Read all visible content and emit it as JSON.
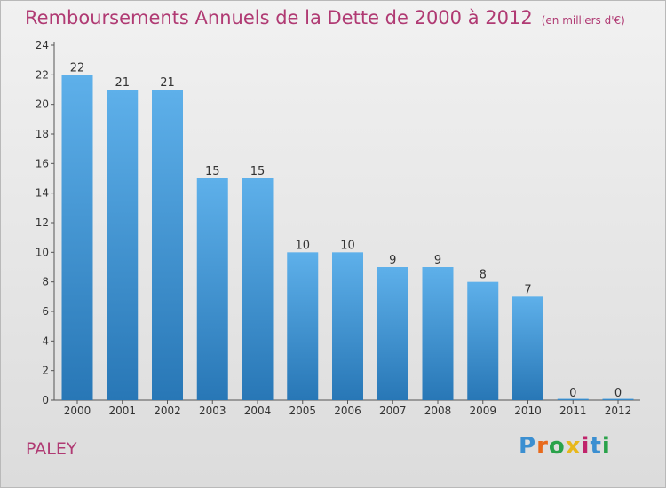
{
  "header": {
    "title": "Remboursements Annuels de la Dette de 2000 à 2012",
    "unit": "(en milliers d'€)"
  },
  "footer": {
    "commune": "PALEY",
    "logo": [
      "P",
      "r",
      "o",
      "x",
      "i",
      "t",
      "i"
    ]
  },
  "colors": {
    "bar_top": "#5eb0ea",
    "bar_bottom": "#2877b6",
    "title": "#b03a73"
  },
  "chart_data": {
    "type": "bar",
    "categories": [
      "2000",
      "2001",
      "2002",
      "2003",
      "2004",
      "2005",
      "2006",
      "2007",
      "2008",
      "2009",
      "2010",
      "2011",
      "2012"
    ],
    "values": [
      22,
      21,
      21,
      15,
      15,
      10,
      10,
      9,
      9,
      8,
      7,
      0,
      0
    ],
    "data_labels": [
      "22",
      "21",
      "21",
      "15",
      "15",
      "10",
      "10",
      "9",
      "9",
      "8",
      "7",
      "0",
      "0"
    ],
    "yticks": [
      "0",
      "2",
      "4",
      "6",
      "8",
      "10",
      "12",
      "14",
      "16",
      "18",
      "20",
      "22",
      "24"
    ],
    "ylim": [
      0,
      24
    ],
    "grid": false,
    "legend": "none"
  }
}
